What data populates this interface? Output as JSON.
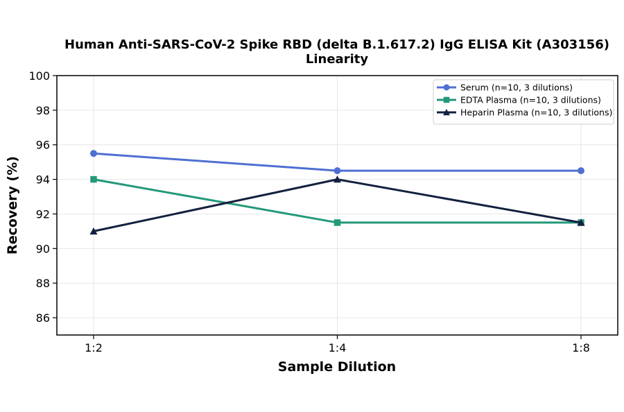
{
  "chart_data": {
    "type": "line",
    "title": "Human Anti-SARS-CoV-2 Spike RBD (delta B.1.617.2) IgG ELISA Kit (A303156)",
    "subtitle": "Linearity",
    "xlabel": "Sample Dilution",
    "ylabel": "Recovery (%)",
    "categories": [
      "1:2",
      "1:4",
      "1:8"
    ],
    "ylim": [
      85,
      100
    ],
    "yticks": [
      86,
      88,
      90,
      92,
      94,
      96,
      98,
      100
    ],
    "grid": true,
    "legend_position": "top-right",
    "series": [
      {
        "name": "Serum (n=10, 3 dilutions)",
        "values": [
          95.5,
          94.5,
          94.5
        ],
        "color": "#4f6fd1",
        "marker": "circle"
      },
      {
        "name": "EDTA Plasma (n=10, 3 dilutions)",
        "values": [
          94.0,
          91.5,
          91.5
        ],
        "color": "#23987a",
        "marker": "square"
      },
      {
        "name": "Heparin Plasma (n=10, 3 dilutions)",
        "values": [
          91.0,
          94.0,
          91.5
        ],
        "color": "#13203f",
        "marker": "triangle"
      }
    ]
  }
}
